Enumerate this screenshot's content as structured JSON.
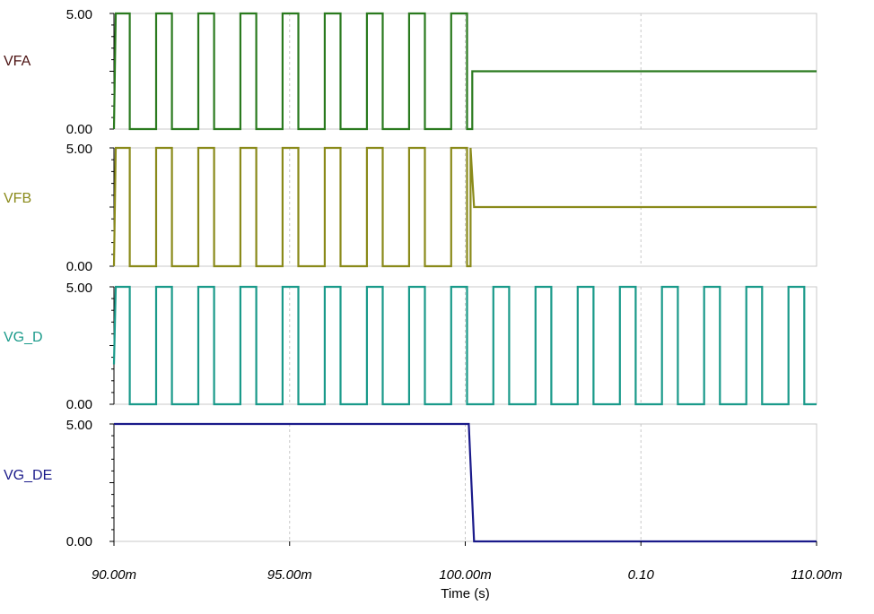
{
  "chart_data": {
    "type": "line",
    "xlabel": "Time (s)",
    "xlim": [
      90.0,
      110.0
    ],
    "x_ticks": [
      90,
      95,
      100,
      105,
      110
    ],
    "x_tick_labels": [
      "90.00m",
      "95.00m",
      "100.00m",
      "0.10",
      "110.00m"
    ],
    "x_unit": "ms",
    "grid": true,
    "panels": [
      {
        "name": "VFA",
        "color": "#2a7a1e",
        "label_color": "#4a1010",
        "ylim": [
          0,
          5
        ],
        "y_tick_labels": [
          "5.00",
          "0.00"
        ],
        "segments": [
          [
            [
              90.0,
              0
            ],
            [
              90.05,
              5
            ],
            [
              90.45,
              5
            ],
            [
              90.45,
              0
            ],
            [
              91.2,
              0
            ],
            [
              91.2,
              5
            ],
            [
              91.65,
              5
            ],
            [
              91.65,
              0
            ],
            [
              92.4,
              0
            ],
            [
              92.4,
              5
            ],
            [
              92.85,
              5
            ],
            [
              92.85,
              0
            ],
            [
              93.6,
              0
            ],
            [
              93.6,
              5
            ],
            [
              94.05,
              5
            ],
            [
              94.05,
              0
            ],
            [
              94.8,
              0
            ],
            [
              94.8,
              5
            ],
            [
              95.25,
              5
            ],
            [
              95.25,
              0
            ],
            [
              96.0,
              0
            ],
            [
              96.0,
              5
            ],
            [
              96.45,
              5
            ],
            [
              96.45,
              0
            ],
            [
              97.2,
              0
            ],
            [
              97.2,
              5
            ],
            [
              97.65,
              5
            ],
            [
              97.65,
              0
            ],
            [
              98.4,
              0
            ],
            [
              98.4,
              5
            ],
            [
              98.85,
              5
            ],
            [
              98.85,
              0
            ],
            [
              99.6,
              0
            ],
            [
              99.6,
              5
            ],
            [
              100.05,
              5
            ],
            [
              100.05,
              0
            ],
            [
              100.2,
              0
            ],
            [
              100.2,
              2.5
            ],
            [
              110.0,
              2.5
            ]
          ]
        ]
      },
      {
        "name": "VFB",
        "color": "#8a8a1a",
        "label_color": "#8a8a1a",
        "ylim": [
          0,
          5
        ],
        "y_tick_labels": [
          "5.00",
          "0.00"
        ],
        "segments": [
          [
            [
              90.0,
              0
            ],
            [
              90.05,
              5
            ],
            [
              90.45,
              5
            ],
            [
              90.45,
              0
            ],
            [
              91.2,
              0
            ],
            [
              91.2,
              5
            ],
            [
              91.65,
              5
            ],
            [
              91.65,
              0
            ],
            [
              92.4,
              0
            ],
            [
              92.4,
              5
            ],
            [
              92.85,
              5
            ],
            [
              92.85,
              0
            ],
            [
              93.6,
              0
            ],
            [
              93.6,
              5
            ],
            [
              94.05,
              5
            ],
            [
              94.05,
              0
            ],
            [
              94.8,
              0
            ],
            [
              94.8,
              5
            ],
            [
              95.25,
              5
            ],
            [
              95.25,
              0
            ],
            [
              96.0,
              0
            ],
            [
              96.0,
              5
            ],
            [
              96.45,
              5
            ],
            [
              96.45,
              0
            ],
            [
              97.2,
              0
            ],
            [
              97.2,
              5
            ],
            [
              97.65,
              5
            ],
            [
              97.65,
              0
            ],
            [
              98.4,
              0
            ],
            [
              98.4,
              5
            ],
            [
              98.85,
              5
            ],
            [
              98.85,
              0
            ],
            [
              99.6,
              0
            ],
            [
              99.6,
              5
            ],
            [
              100.05,
              5
            ],
            [
              100.05,
              0
            ],
            [
              100.15,
              0
            ],
            [
              100.15,
              5
            ],
            [
              100.25,
              2.5
            ],
            [
              110.0,
              2.5
            ]
          ]
        ]
      },
      {
        "name": "VG_D",
        "color": "#1a9a8a",
        "label_color": "#1a9a8a",
        "ylim": [
          0,
          5
        ],
        "y_tick_labels": [
          "5.00",
          "0.00"
        ],
        "period": 1.2,
        "pulse_start": 91.2,
        "pulse_width": 0.45,
        "pulse_count": 16,
        "segments": [
          [
            [
              90.0,
              1.7
            ],
            [
              90.05,
              5
            ],
            [
              90.45,
              5
            ],
            [
              90.45,
              0
            ],
            [
              91.2,
              0
            ],
            [
              91.2,
              5
            ],
            [
              91.65,
              5
            ],
            [
              91.65,
              0
            ],
            [
              92.4,
              0
            ],
            [
              92.4,
              5
            ],
            [
              92.85,
              5
            ],
            [
              92.85,
              0
            ],
            [
              93.6,
              0
            ],
            [
              93.6,
              5
            ],
            [
              94.05,
              5
            ],
            [
              94.05,
              0
            ],
            [
              94.8,
              0
            ],
            [
              94.8,
              5
            ],
            [
              95.25,
              5
            ],
            [
              95.25,
              0
            ],
            [
              96.0,
              0
            ],
            [
              96.0,
              5
            ],
            [
              96.45,
              5
            ],
            [
              96.45,
              0
            ],
            [
              97.2,
              0
            ],
            [
              97.2,
              5
            ],
            [
              97.65,
              5
            ],
            [
              97.65,
              0
            ],
            [
              98.4,
              0
            ],
            [
              98.4,
              5
            ],
            [
              98.85,
              5
            ],
            [
              98.85,
              0
            ],
            [
              99.6,
              0
            ],
            [
              99.6,
              5
            ],
            [
              100.05,
              5
            ],
            [
              100.05,
              0
            ],
            [
              100.8,
              0
            ],
            [
              100.8,
              5
            ],
            [
              101.25,
              5
            ],
            [
              101.25,
              0
            ],
            [
              102.0,
              0
            ],
            [
              102.0,
              5
            ],
            [
              102.45,
              5
            ],
            [
              102.45,
              0
            ],
            [
              103.2,
              0
            ],
            [
              103.2,
              5
            ],
            [
              103.65,
              5
            ],
            [
              103.65,
              0
            ],
            [
              104.4,
              0
            ],
            [
              104.4,
              5
            ],
            [
              104.85,
              5
            ],
            [
              104.85,
              0
            ],
            [
              105.6,
              0
            ],
            [
              105.6,
              5
            ],
            [
              106.05,
              5
            ],
            [
              106.05,
              0
            ],
            [
              106.8,
              0
            ],
            [
              106.8,
              5
            ],
            [
              107.25,
              5
            ],
            [
              107.25,
              0
            ],
            [
              108.0,
              0
            ],
            [
              108.0,
              5
            ],
            [
              108.45,
              5
            ],
            [
              108.45,
              0
            ],
            [
              109.2,
              0
            ],
            [
              109.2,
              5
            ],
            [
              109.65,
              5
            ],
            [
              109.65,
              0
            ],
            [
              110.0,
              0
            ]
          ]
        ]
      },
      {
        "name": "VG_DE",
        "color": "#1a1a8a",
        "label_color": "#1a1a8a",
        "ylim": [
          0,
          5
        ],
        "y_tick_labels": [
          "5.00",
          "0.00"
        ],
        "segments": [
          [
            [
              90.0,
              5
            ],
            [
              100.1,
              5
            ],
            [
              100.25,
              0
            ],
            [
              110.0,
              0
            ]
          ]
        ]
      }
    ]
  }
}
